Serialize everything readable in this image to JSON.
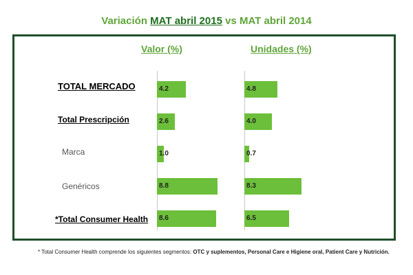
{
  "title": {
    "prefix": "Variación",
    "highlight": "MAT abril 2015",
    "suffix": "vs MAT abril 2014"
  },
  "chart_data": {
    "type": "bar",
    "orientation": "horizontal",
    "categories": [
      "TOTAL MERCADO",
      "Total Prescripción",
      "Marca",
      "Genéricos",
      "*Total Consumer Health"
    ],
    "series": [
      {
        "name": "Valor (%)",
        "values": [
          4.2,
          2.6,
          1.0,
          8.8,
          8.6
        ]
      },
      {
        "name": "Unidades (%)",
        "values": [
          4.8,
          4.0,
          0.7,
          8.3,
          6.5
        ]
      }
    ],
    "value_labels": [
      [
        "4.2",
        "2.6",
        "1.0",
        "8.8",
        "8.6"
      ],
      [
        "4.8",
        "4.0",
        "0.7",
        "8.3",
        "6.5"
      ]
    ],
    "xlim": [
      0,
      10
    ],
    "bar_color": "#6cbf3a",
    "grid": false
  },
  "footnote": {
    "prefix": "* Total Consumer Health comprende los siguientes segmentos:",
    "bold": "OTC y suplementos, Personal Care e Higiene oral, Patient Care y Nutrición."
  },
  "colors": {
    "title": "#5fa53a",
    "title_highlight": "#1f6f1f",
    "frame": "#1f4f2a"
  }
}
